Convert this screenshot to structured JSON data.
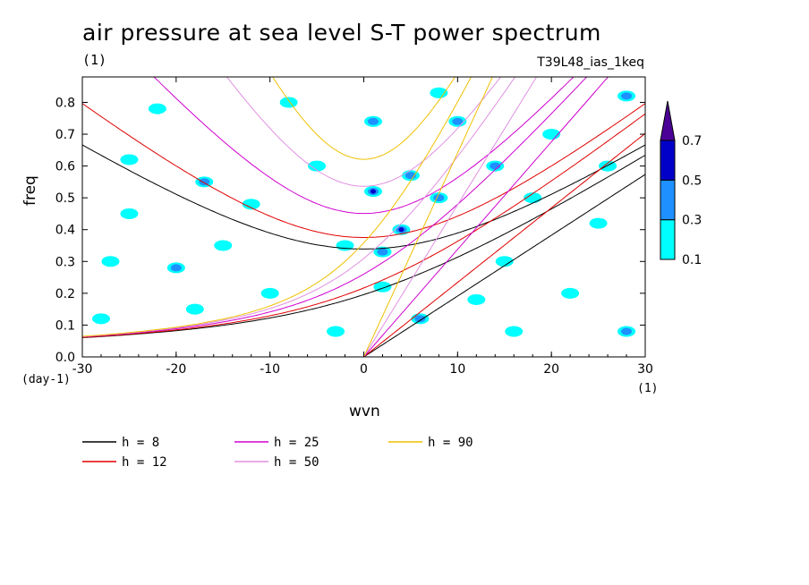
{
  "chart_data": {
    "type": "contour",
    "title": "air pressure at sea level S-T power spectrum",
    "units_label": "(1)",
    "run_label": "T39L48_ias_1keq",
    "xlabel": "wvn",
    "ylabel": "freq",
    "x_units": "(1)",
    "y_units": "(day-1)",
    "xlim": [
      -30,
      30
    ],
    "ylim": [
      0,
      0.88
    ],
    "x_ticks": [
      "-30",
      "-20",
      "-10",
      "0",
      "10",
      "20",
      "30"
    ],
    "y_ticks": [
      "0.0",
      "0.1",
      "0.2",
      "0.3",
      "0.4",
      "0.5",
      "0.6",
      "0.7",
      "0.8"
    ],
    "colorbar": {
      "levels": [
        "0.1",
        "0.3",
        "0.5",
        "0.7"
      ],
      "colors": [
        "#00ffff",
        "#1e90ff",
        "#0000c8",
        "#4b0096"
      ]
    },
    "dispersion_curves": [
      {
        "name": "h =  8",
        "color": "#000000",
        "equivalent_depth": 8
      },
      {
        "name": "h = 12",
        "color": "#e00000",
        "equivalent_depth": 12
      },
      {
        "name": "h = 25",
        "color": "#d000d0",
        "equivalent_depth": 25
      },
      {
        "name": "h = 50",
        "color": "#e090e0",
        "equivalent_depth": 50
      },
      {
        "name": "h = 90",
        "color": "#f0c000",
        "equivalent_depth": 90
      }
    ],
    "contour_blobs": [
      {
        "x": 4,
        "y": 0.4,
        "level": 0.5
      },
      {
        "x": 1,
        "y": 0.52,
        "level": 0.5
      },
      {
        "x": 5,
        "y": 0.57,
        "level": 0.3
      },
      {
        "x": 8,
        "y": 0.5,
        "level": 0.3
      },
      {
        "x": 2,
        "y": 0.33,
        "level": 0.3
      },
      {
        "x": 10,
        "y": 0.74,
        "level": 0.3
      },
      {
        "x": 1,
        "y": 0.74,
        "level": 0.3
      },
      {
        "x": -20,
        "y": 0.28,
        "level": 0.3
      },
      {
        "x": 6,
        "y": 0.12,
        "level": 0.3
      },
      {
        "x": 28,
        "y": 0.08,
        "level": 0.3
      },
      {
        "x": 14,
        "y": 0.6,
        "level": 0.3
      },
      {
        "x": -17,
        "y": 0.55,
        "level": 0.3
      },
      {
        "x": 28,
        "y": 0.82,
        "level": 0.3
      },
      {
        "x": -25,
        "y": 0.45,
        "level": 0.1
      },
      {
        "x": -27,
        "y": 0.3,
        "level": 0.1
      },
      {
        "x": -15,
        "y": 0.35,
        "level": 0.1
      },
      {
        "x": -10,
        "y": 0.2,
        "level": 0.1
      },
      {
        "x": -5,
        "y": 0.6,
        "level": 0.1
      },
      {
        "x": -22,
        "y": 0.78,
        "level": 0.1
      },
      {
        "x": -8,
        "y": 0.8,
        "level": 0.1
      },
      {
        "x": 15,
        "y": 0.3,
        "level": 0.1
      },
      {
        "x": 22,
        "y": 0.2,
        "level": 0.1
      },
      {
        "x": 18,
        "y": 0.5,
        "level": 0.1
      },
      {
        "x": 25,
        "y": 0.42,
        "level": 0.1
      },
      {
        "x": -28,
        "y": 0.12,
        "level": 0.1
      },
      {
        "x": -12,
        "y": 0.48,
        "level": 0.1
      },
      {
        "x": 12,
        "y": 0.18,
        "level": 0.1
      },
      {
        "x": -3,
        "y": 0.08,
        "level": 0.1
      },
      {
        "x": 20,
        "y": 0.7,
        "level": 0.1
      },
      {
        "x": -18,
        "y": 0.15,
        "level": 0.1
      },
      {
        "x": 8,
        "y": 0.83,
        "level": 0.1
      },
      {
        "x": -2,
        "y": 0.35,
        "level": 0.1
      },
      {
        "x": 26,
        "y": 0.6,
        "level": 0.1
      },
      {
        "x": -25,
        "y": 0.62,
        "level": 0.1
      },
      {
        "x": 2,
        "y": 0.22,
        "level": 0.1
      },
      {
        "x": 16,
        "y": 0.08,
        "level": 0.1
      }
    ]
  }
}
